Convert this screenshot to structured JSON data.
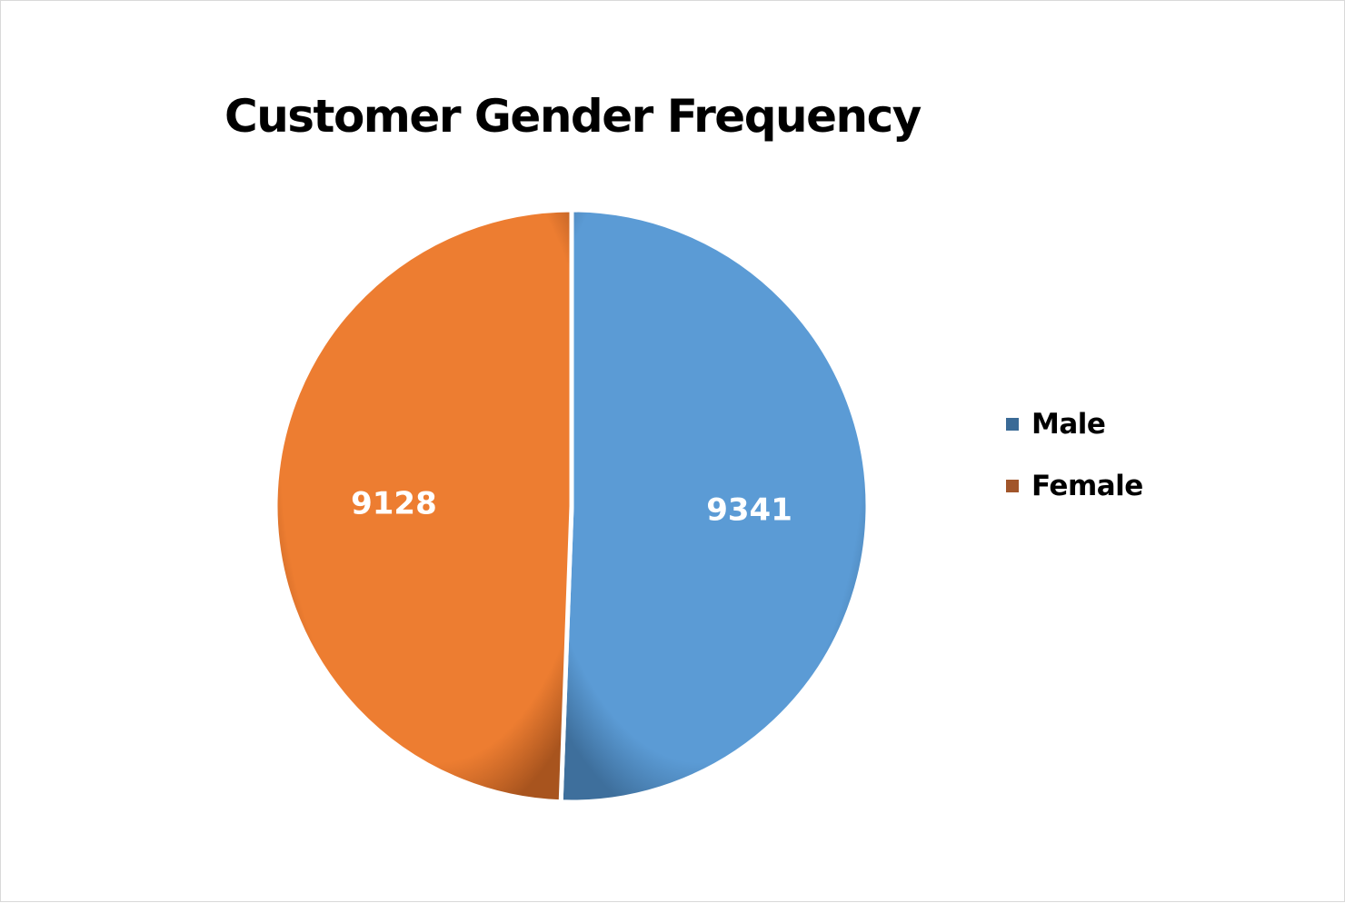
{
  "chart_data": {
    "type": "pie",
    "title": "Customer Gender Frequency",
    "categories": [
      "Male",
      "Female"
    ],
    "values": [
      9341,
      9128
    ],
    "data_labels": [
      "9341",
      "9128"
    ],
    "colors": [
      "#5b9bd5",
      "#ed7d31"
    ],
    "legend_colors": [
      "#3a6a96",
      "#a1552a"
    ],
    "legend_position": "right",
    "start_angle_deg": 0,
    "direction": "clockwise"
  }
}
